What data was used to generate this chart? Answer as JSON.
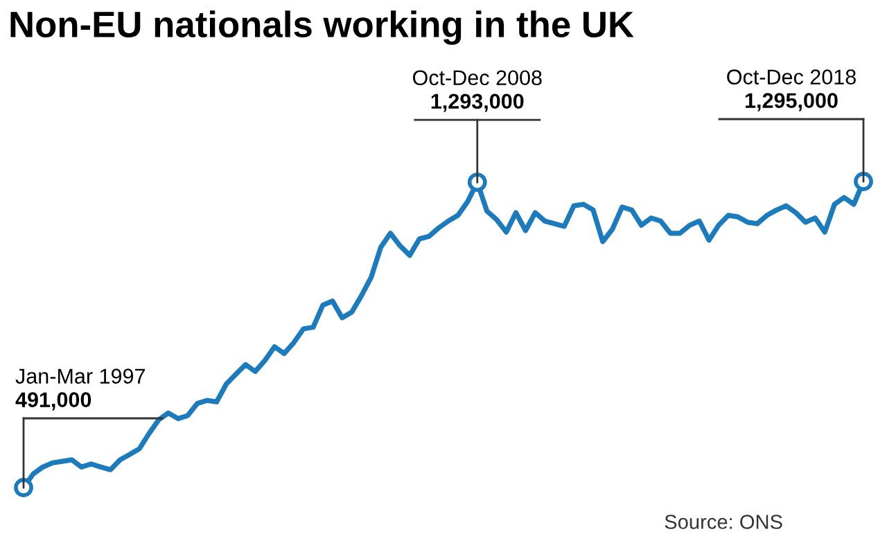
{
  "chart_data": {
    "type": "line",
    "title": "Non-EU nationals working in the UK",
    "categories": [
      null,
      null,
      null,
      null,
      null,
      null,
      null,
      null,
      null,
      null,
      null,
      null,
      null,
      null,
      null,
      null,
      null,
      null,
      null,
      null,
      null,
      null,
      null,
      null,
      null,
      null,
      null,
      null,
      null,
      null,
      null,
      null,
      null,
      null,
      null,
      null,
      null,
      null,
      null,
      null,
      null,
      null,
      null,
      null,
      null,
      null,
      null,
      null,
      null,
      null,
      null,
      null,
      null,
      null,
      null,
      null,
      null,
      null,
      null,
      null,
      null,
      null,
      null,
      null,
      null,
      null,
      null,
      null,
      null,
      null,
      null,
      null,
      null,
      null,
      null,
      null,
      null,
      null,
      null,
      null,
      null,
      null,
      null,
      null,
      null,
      null,
      null,
      null
    ],
    "series": [
      {
        "color": "#1b7bbd",
        "values": [
          491000,
          527000,
          545000,
          556000,
          560000,
          564000,
          545000,
          553000,
          545000,
          538000,
          564000,
          578000,
          593000,
          633000,
          669000,
          687000,
          672000,
          680000,
          712000,
          720000,
          716000,
          763000,
          789000,
          814000,
          796000,
          825000,
          861000,
          843000,
          872000,
          908000,
          912000,
          970000,
          981000,
          937000,
          952000,
          995000,
          1043000,
          1122000,
          1159000,
          1126000,
          1101000,
          1144000,
          1151000,
          1173000,
          1191000,
          1206000,
          1242000,
          1293000,
          1217000,
          1195000,
          1162000,
          1213000,
          1166000,
          1213000,
          1191000,
          1184000,
          1177000,
          1231000,
          1235000,
          1220000,
          1137000,
          1170000,
          1228000,
          1220000,
          1180000,
          1199000,
          1191000,
          1159000,
          1159000,
          1180000,
          1191000,
          1141000,
          1180000,
          1206000,
          1202000,
          1188000,
          1184000,
          1206000,
          1220000,
          1231000,
          1213000,
          1188000,
          1199000,
          1162000,
          1235000,
          1253000,
          1235000,
          1295000
        ],
        "value_labels": [
          "491,000",
          null,
          null,
          null,
          null,
          null,
          null,
          null,
          null,
          null,
          null,
          null,
          null,
          null,
          null,
          null,
          null,
          null,
          null,
          null,
          null,
          null,
          null,
          null,
          null,
          null,
          null,
          null,
          null,
          null,
          null,
          null,
          null,
          null,
          null,
          null,
          null,
          null,
          null,
          null,
          null,
          null,
          null,
          null,
          null,
          null,
          null,
          "1,293,000",
          null,
          null,
          null,
          null,
          null,
          null,
          null,
          null,
          null,
          null,
          null,
          null,
          null,
          null,
          null,
          null,
          null,
          null,
          null,
          null,
          null,
          null,
          null,
          null,
          null,
          null,
          null,
          null,
          null,
          null,
          null,
          null,
          null,
          null,
          null,
          null,
          null,
          null,
          null,
          "1,295,000"
        ]
      }
    ],
    "annotations": [
      "Jan-Mar 1997",
      "Oct-Dec 2008",
      "Oct-Dec 2018",
      "Source: ONS"
    ]
  }
}
